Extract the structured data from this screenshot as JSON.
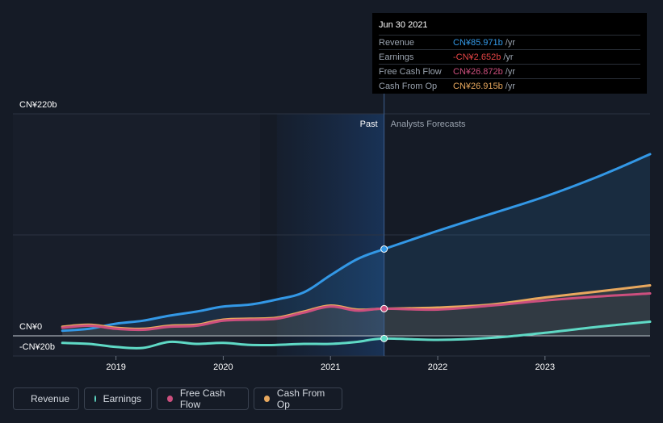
{
  "chart_data": {
    "type": "line",
    "title": "",
    "ylabel": "",
    "y_top_label": "CN¥220b",
    "y_zero_label": "CN¥0",
    "y_neg_label": "-CN¥20b",
    "ylim": [
      -20,
      220
    ],
    "x_ticks": [
      "2019",
      "2020",
      "2021",
      "2022",
      "2023"
    ],
    "x_tick_values": [
      2019.0,
      2020.0,
      2021.0,
      2022.0,
      2023.0
    ],
    "xlim": [
      2018.28,
      2023.98
    ],
    "past_region_start": 2020.5,
    "divider_x": 2021.5,
    "past_label": "Past",
    "forecast_label": "Analysts Forecasts",
    "series": [
      {
        "name": "Revenue",
        "color": "#3398e6",
        "fill": true,
        "points": [
          [
            2018.5,
            5
          ],
          [
            2018.75,
            7
          ],
          [
            2019.0,
            12
          ],
          [
            2019.25,
            15
          ],
          [
            2019.5,
            20
          ],
          [
            2019.75,
            24
          ],
          [
            2020.0,
            29
          ],
          [
            2020.25,
            31
          ],
          [
            2020.5,
            36
          ],
          [
            2020.75,
            43
          ],
          [
            2021.0,
            60
          ],
          [
            2021.25,
            76
          ],
          [
            2021.5,
            86
          ],
          [
            2022.0,
            104
          ],
          [
            2022.5,
            121
          ],
          [
            2023.0,
            138
          ],
          [
            2023.5,
            158
          ],
          [
            2023.98,
            180
          ]
        ]
      },
      {
        "name": "Cash From Op",
        "color": "#e8a85e",
        "fill": true,
        "points": [
          [
            2018.5,
            9
          ],
          [
            2018.75,
            11
          ],
          [
            2019.0,
            8
          ],
          [
            2019.25,
            7
          ],
          [
            2019.5,
            10
          ],
          [
            2019.75,
            11
          ],
          [
            2020.0,
            16
          ],
          [
            2020.25,
            17
          ],
          [
            2020.5,
            18
          ],
          [
            2020.75,
            24
          ],
          [
            2021.0,
            30
          ],
          [
            2021.25,
            26
          ],
          [
            2021.5,
            26.9
          ],
          [
            2022.0,
            28
          ],
          [
            2022.5,
            31
          ],
          [
            2023.0,
            38
          ],
          [
            2023.5,
            44
          ],
          [
            2023.98,
            50
          ]
        ]
      },
      {
        "name": "Free Cash Flow",
        "color": "#cc4f7e",
        "fill": false,
        "points": [
          [
            2018.5,
            8
          ],
          [
            2018.75,
            10
          ],
          [
            2019.0,
            7
          ],
          [
            2019.25,
            6
          ],
          [
            2019.5,
            9
          ],
          [
            2019.75,
            10
          ],
          [
            2020.0,
            15
          ],
          [
            2020.25,
            16
          ],
          [
            2020.5,
            17
          ],
          [
            2020.75,
            23
          ],
          [
            2021.0,
            29
          ],
          [
            2021.25,
            25
          ],
          [
            2021.5,
            26.9
          ],
          [
            2022.0,
            26
          ],
          [
            2022.5,
            30
          ],
          [
            2023.0,
            35
          ],
          [
            2023.5,
            39
          ],
          [
            2023.98,
            42
          ]
        ]
      },
      {
        "name": "Earnings",
        "color": "#5fd9c5",
        "fill": false,
        "points": [
          [
            2018.5,
            -7
          ],
          [
            2018.75,
            -8
          ],
          [
            2019.0,
            -11
          ],
          [
            2019.25,
            -12
          ],
          [
            2019.5,
            -6
          ],
          [
            2019.75,
            -8
          ],
          [
            2020.0,
            -7
          ],
          [
            2020.25,
            -9
          ],
          [
            2020.5,
            -9
          ],
          [
            2020.75,
            -8
          ],
          [
            2021.0,
            -8
          ],
          [
            2021.25,
            -6
          ],
          [
            2021.5,
            -2.7
          ],
          [
            2022.0,
            -4
          ],
          [
            2022.5,
            -2
          ],
          [
            2023.0,
            3
          ],
          [
            2023.5,
            9
          ],
          [
            2023.98,
            14
          ]
        ]
      }
    ]
  },
  "tooltip": {
    "date": "Jun 30 2021",
    "rows": [
      {
        "label": "Revenue",
        "value": "CN¥85.971b",
        "unit": "/yr",
        "color": "#3398e6"
      },
      {
        "label": "Earnings",
        "value": "-CN¥2.652b",
        "unit": "/yr",
        "color": "#e64545"
      },
      {
        "label": "Free Cash Flow",
        "value": "CN¥26.872b",
        "unit": "/yr",
        "color": "#cc4f7e"
      },
      {
        "label": "Cash From Op",
        "value": "CN¥26.915b",
        "unit": "/yr",
        "color": "#e8a85e"
      }
    ]
  },
  "legend": [
    {
      "label": "Revenue",
      "color": "#3398e6"
    },
    {
      "label": "Earnings",
      "color": "#5fd9c5"
    },
    {
      "label": "Free Cash Flow",
      "color": "#cc4f7e"
    },
    {
      "label": "Cash From Op",
      "color": "#e8a85e"
    }
  ]
}
